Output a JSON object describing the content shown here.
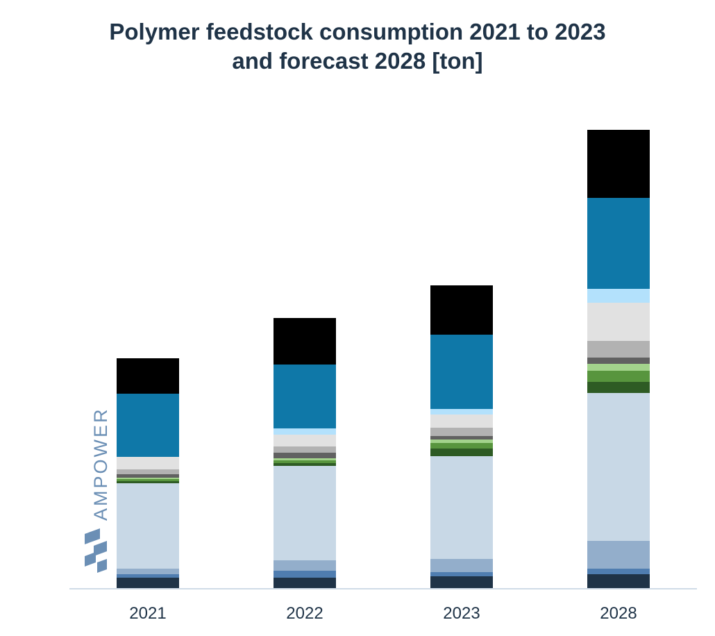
{
  "chart_data": {
    "type": "bar",
    "stacked": true,
    "title_lines": [
      "Polymer feedstock consumption 2021 to 2023",
      "and forecast 2028 [ton]"
    ],
    "xlabel": "",
    "ylabel": "",
    "categories": [
      "2021",
      "2022",
      "2023",
      "2028"
    ],
    "ylim": [
      0,
      665
    ],
    "grid": false,
    "legend": "none",
    "series": [
      {
        "color": "#1f3347",
        "values": [
          16,
          16,
          18,
          21
        ]
      },
      {
        "color": "#4f7db0",
        "values": [
          5,
          10,
          6,
          8
        ]
      },
      {
        "color": "#93aecb",
        "values": [
          8,
          15,
          19,
          40
        ]
      },
      {
        "color": "#c8d8e6",
        "values": [
          123,
          136,
          148,
          213
        ]
      },
      {
        "color": "#2e5b24",
        "values": [
          3,
          4,
          11,
          16
        ]
      },
      {
        "color": "#58953e",
        "values": [
          3,
          4,
          8,
          16
        ]
      },
      {
        "color": "#a3d38c",
        "values": [
          2,
          3,
          5,
          10
        ]
      },
      {
        "color": "#616161",
        "values": [
          5,
          8,
          5,
          9
        ]
      },
      {
        "color": "#b2b2b2",
        "values": [
          7,
          9,
          12,
          24
        ]
      },
      {
        "color": "#e1e1e1",
        "values": [
          18,
          17,
          19,
          55
        ]
      },
      {
        "color": "#b3e1fc",
        "values": [
          0,
          9,
          8,
          20
        ]
      },
      {
        "color": "#0f78a8",
        "values": [
          91,
          92,
          107,
          131
        ]
      },
      {
        "color": "#000000",
        "values": [
          51,
          67,
          71,
          98
        ]
      }
    ]
  },
  "watermark": {
    "text": "AMPOWER",
    "color": "#6b8fb5"
  },
  "colors": {
    "title": "#1f3347",
    "axis": "#cfdbe7",
    "tick_label": "#1f3347"
  }
}
